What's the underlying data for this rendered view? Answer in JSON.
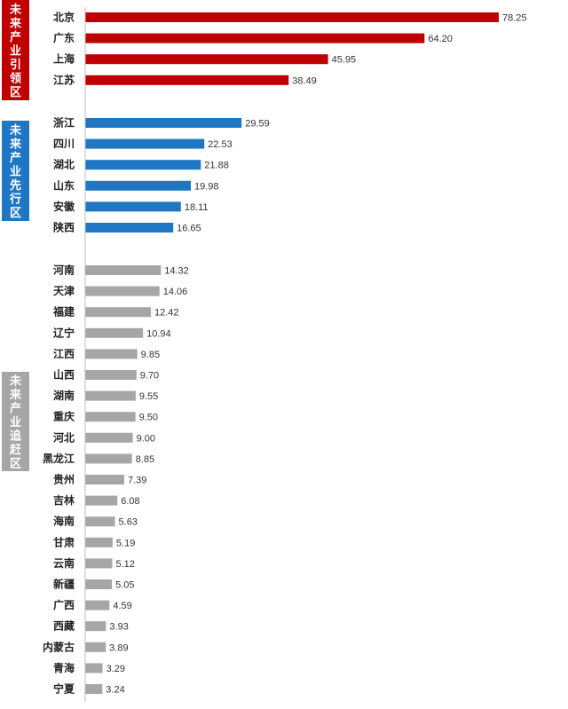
{
  "chart_data": {
    "type": "bar",
    "orientation": "horizontal",
    "grid": false,
    "legend": "none",
    "xlim": [
      0,
      78.25
    ],
    "series": [
      {
        "values": [
          78.25,
          64.2,
          45.95,
          38.49,
          29.59,
          22.53,
          21.88,
          19.98,
          18.11,
          16.65,
          14.32,
          14.06,
          12.42,
          10.94,
          9.85,
          9.7,
          9.55,
          9.5,
          9.0,
          8.85,
          7.39,
          6.08,
          5.63,
          5.19,
          5.12,
          5.05,
          4.59,
          3.93,
          3.89,
          3.29,
          3.24
        ]
      }
    ],
    "categories": [
      "北京",
      "广东",
      "上海",
      "江苏",
      "浙江",
      "四川",
      "湖北",
      "山东",
      "安徽",
      "陕西",
      "河南",
      "天津",
      "福建",
      "辽宁",
      "江西",
      "山西",
      "湖南",
      "重庆",
      "河北",
      "黑龙江",
      "贵州",
      "吉林",
      "海南",
      "甘肃",
      "云南",
      "新疆",
      "广西",
      "西藏",
      "内蒙古",
      "青海",
      "宁夏"
    ],
    "value_labels": [
      "78.25",
      "64.20",
      "45.95",
      "38.49",
      "29.59",
      "22.53",
      "21.88",
      "19.98",
      "18.11",
      "16.65",
      "14.32",
      "14.06",
      "12.42",
      "10.94",
      "9.85",
      "9.70",
      "9.55",
      "9.50",
      "9.00",
      "8.85",
      "7.39",
      "6.08",
      "5.63",
      "5.19",
      "5.12",
      "5.05",
      "4.59",
      "3.93",
      "3.89",
      "3.29",
      "3.24"
    ],
    "groups": [
      {
        "label": "未来产业引领区",
        "color": "#c00000",
        "start": 0,
        "end": 3
      },
      {
        "label": "未来产业先行区",
        "color": "#1f77c4",
        "start": 4,
        "end": 9
      },
      {
        "label": "未来产业追赶区",
        "color": "#a6a6a6",
        "start": 10,
        "end": 30
      }
    ]
  }
}
